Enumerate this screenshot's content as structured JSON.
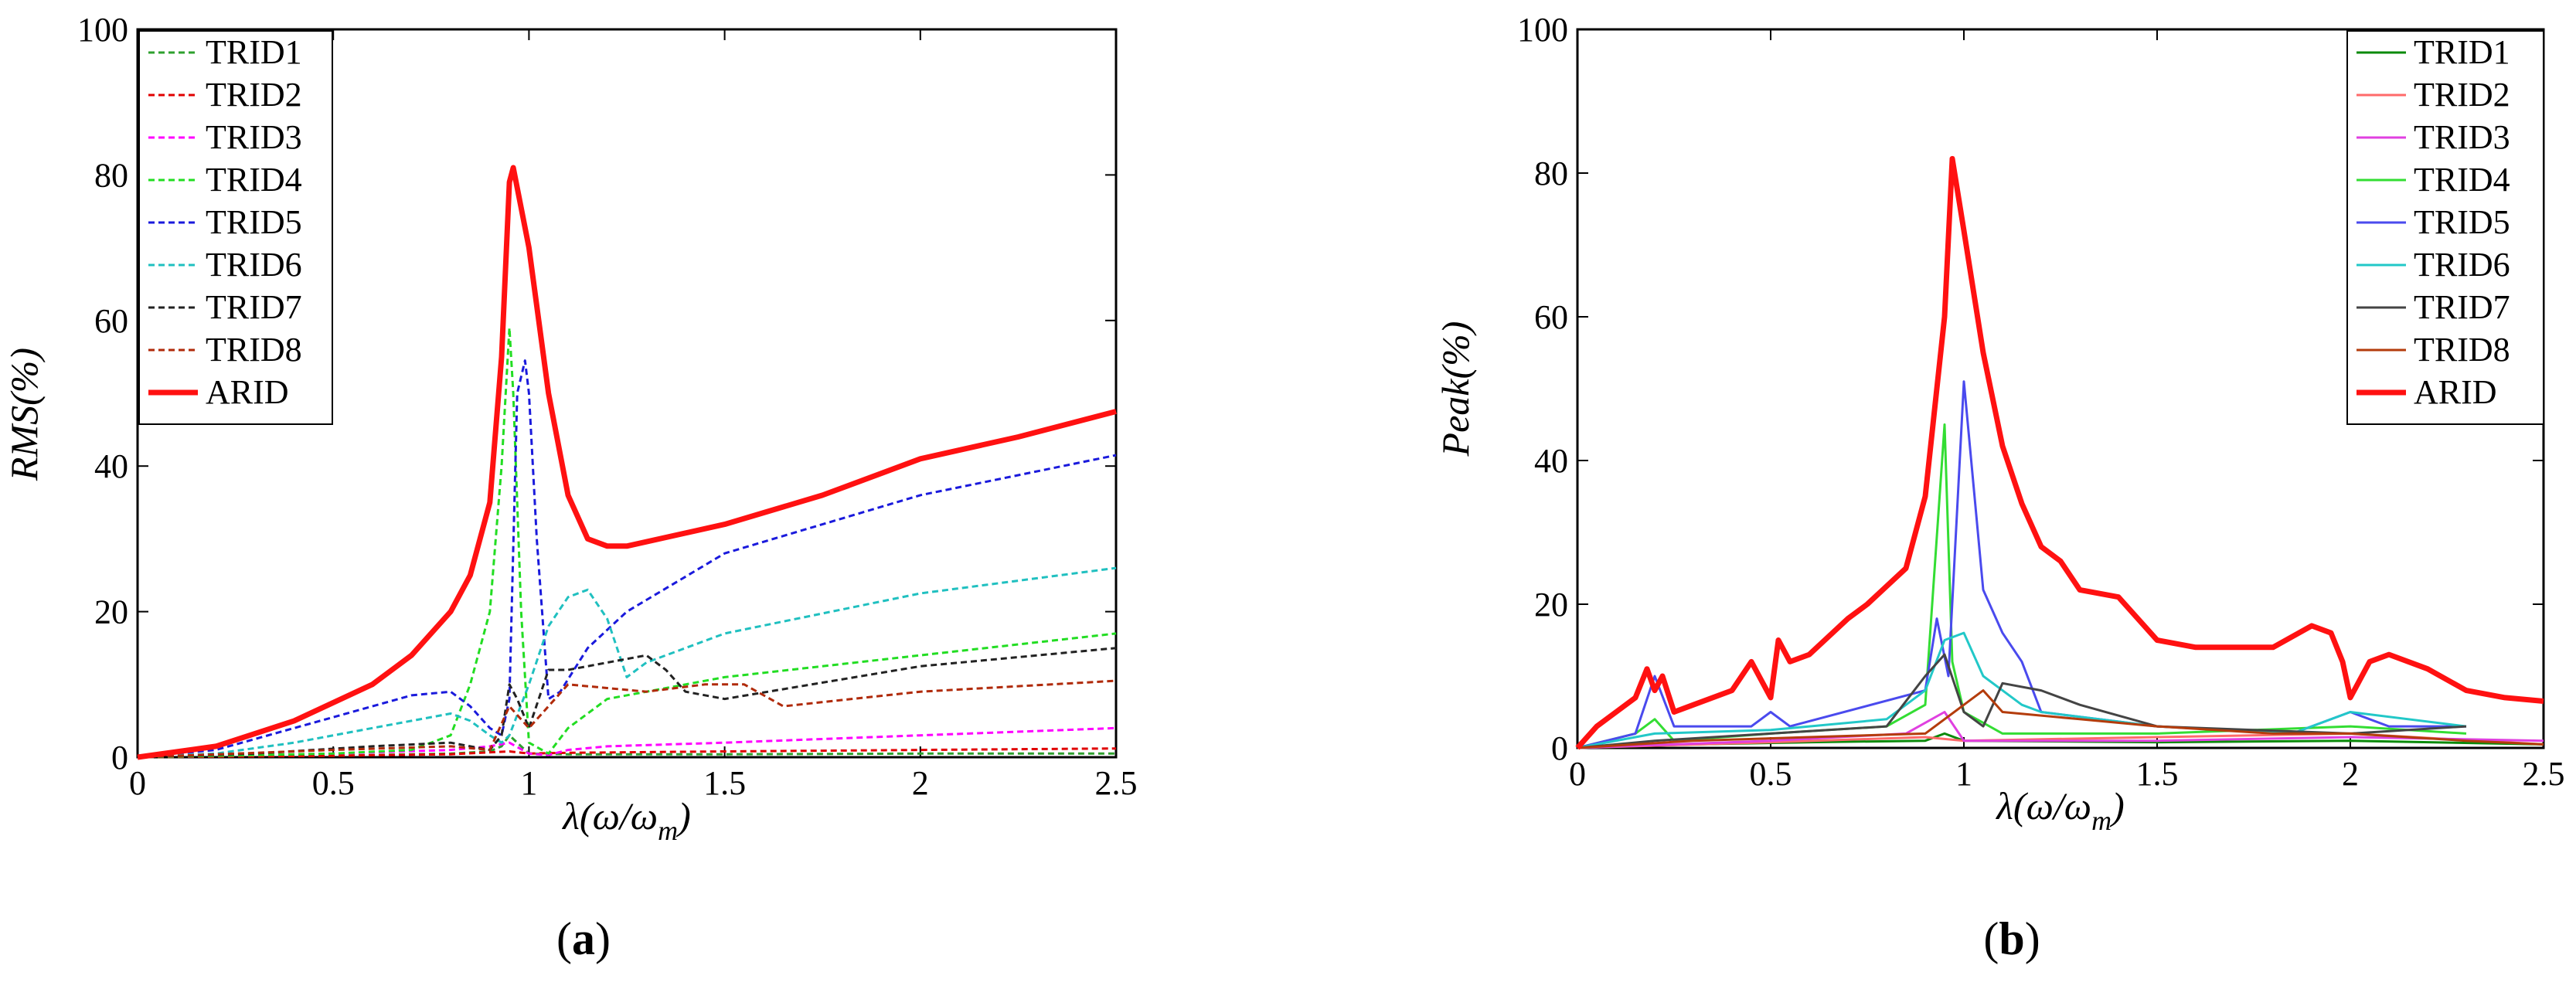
{
  "figure": {
    "panel_a": "a",
    "panel_b": "b"
  },
  "chart_data": [
    {
      "type": "line",
      "title": "",
      "xlabel": "λ(ω/ω",
      "xlabel_sub": "m",
      "xlabel_close": ")",
      "ylabel": "RMS(%)",
      "xlim": [
        0,
        2.5
      ],
      "ylim": [
        0,
        100
      ],
      "xticks": [
        0,
        0.5,
        1,
        1.5,
        2,
        2.5
      ],
      "xtick_labels": [
        "0",
        "0.5",
        "1",
        "1.5",
        "2",
        "2.5"
      ],
      "yticks": [
        0,
        20,
        40,
        60,
        80,
        100
      ],
      "ytick_labels": [
        "0",
        "20",
        "40",
        "60",
        "80",
        "100"
      ],
      "legend_position": "top-left",
      "series": [
        {
          "name": "TRID1",
          "color": "#2ea02e",
          "dash": "dashed",
          "x": [
            0,
            0.5,
            0.8,
            0.9,
            0.93,
            0.95,
            0.97,
            1.0,
            1.1,
            1.5,
            2.0,
            2.5
          ],
          "y": [
            0,
            0.2,
            0.5,
            0.8,
            1.5,
            3,
            2,
            0.5,
            0.4,
            0.4,
            0.5,
            0.5
          ]
        },
        {
          "name": "TRID2",
          "color": "#e00000",
          "dash": "dashed",
          "x": [
            0,
            0.5,
            0.8,
            0.95,
            1.0,
            1.1,
            1.5,
            2.0,
            2.5
          ],
          "y": [
            0,
            0.2,
            0.4,
            0.8,
            0.5,
            0.6,
            0.8,
            1.0,
            1.2
          ]
        },
        {
          "name": "TRID3",
          "color": "#ff00ff",
          "dash": "dashed",
          "x": [
            0,
            0.5,
            0.8,
            0.9,
            0.95,
            1.0,
            1.05,
            1.1,
            1.2,
            1.5,
            2.0,
            2.5
          ],
          "y": [
            0,
            0.5,
            1.0,
            1.5,
            2,
            0.5,
            0.3,
            1.0,
            1.5,
            2,
            3,
            4
          ]
        },
        {
          "name": "TRID4",
          "color": "#22dd22",
          "dash": "dashed",
          "x": [
            0,
            0.3,
            0.5,
            0.7,
            0.8,
            0.85,
            0.9,
            0.93,
            0.95,
            0.96,
            0.98,
            1.0,
            1.05,
            1.1,
            1.2,
            1.5,
            2.0,
            2.5
          ],
          "y": [
            0,
            0.3,
            0.5,
            1.0,
            3,
            10,
            20,
            40,
            59,
            50,
            20,
            2,
            0.5,
            4,
            8,
            11,
            14,
            17
          ]
        },
        {
          "name": "TRID5",
          "color": "#1a1adc",
          "dash": "dashed",
          "x": [
            0,
            0.2,
            0.4,
            0.6,
            0.7,
            0.8,
            0.85,
            0.9,
            0.93,
            0.95,
            0.97,
            0.99,
            1.0,
            1.02,
            1.05,
            1.08,
            1.15,
            1.25,
            1.5,
            2.0,
            2.5
          ],
          "y": [
            0,
            1,
            4,
            7,
            8.5,
            9,
            7,
            4,
            3,
            8,
            50,
            54.5,
            50,
            30,
            8,
            9,
            15,
            20,
            28,
            36,
            41.5
          ]
        },
        {
          "name": "TRID6",
          "color": "#20c0c0",
          "dash": "dashed",
          "x": [
            0,
            0.2,
            0.4,
            0.6,
            0.7,
            0.8,
            0.85,
            0.9,
            0.93,
            0.95,
            1.0,
            1.05,
            1.1,
            1.15,
            1.2,
            1.25,
            1.3,
            1.5,
            2.0,
            2.5
          ],
          "y": [
            0,
            0.5,
            2,
            4,
            5,
            6,
            5,
            3,
            2,
            3,
            10,
            18,
            22,
            23,
            19,
            11,
            13,
            17,
            22.5,
            26
          ]
        },
        {
          "name": "TRID7",
          "color": "#222222",
          "dash": "dashed",
          "x": [
            0,
            0.3,
            0.6,
            0.8,
            0.9,
            0.93,
            0.95,
            0.97,
            1.0,
            1.05,
            1.1,
            1.2,
            1.3,
            1.35,
            1.4,
            1.5,
            2.0,
            2.5
          ],
          "y": [
            0,
            0.5,
            1.5,
            2,
            1,
            3,
            10,
            8,
            4,
            12,
            12,
            13,
            14,
            12,
            9,
            8,
            12.5,
            15
          ]
        },
        {
          "name": "TRID8",
          "color": "#b02a0a",
          "dash": "dashed",
          "x": [
            0,
            0.5,
            0.8,
            0.9,
            0.95,
            1.0,
            1.1,
            1.3,
            1.45,
            1.55,
            1.65,
            2.0,
            2.5
          ],
          "y": [
            0,
            1,
            1.5,
            1,
            7,
            4,
            10,
            9,
            10,
            10,
            7,
            9,
            10.5
          ]
        },
        {
          "name": "ARID",
          "color": "#ff1111",
          "dash": "solid",
          "bold": true,
          "x": [
            0,
            0.2,
            0.4,
            0.6,
            0.7,
            0.8,
            0.85,
            0.9,
            0.93,
            0.95,
            0.96,
            1.0,
            1.05,
            1.1,
            1.15,
            1.2,
            1.25,
            1.5,
            1.75,
            2.0,
            2.25,
            2.5
          ],
          "y": [
            0,
            1.5,
            5,
            10,
            14,
            20,
            25,
            35,
            55,
            79,
            81,
            70,
            50,
            36,
            30,
            29,
            29,
            32,
            36,
            41,
            44,
            47.5
          ]
        }
      ]
    },
    {
      "type": "line",
      "title": "",
      "xlabel": "λ(ω/ω",
      "xlabel_sub": "m",
      "xlabel_close": ")",
      "ylabel": "Peak(%)",
      "xlim": [
        0,
        2.5
      ],
      "ylim": [
        0,
        100
      ],
      "xticks": [
        0,
        0.5,
        1,
        1.5,
        2,
        2.5
      ],
      "xtick_labels": [
        "0",
        "0.5",
        "1",
        "1.5",
        "2",
        "2.5"
      ],
      "yticks": [
        0,
        20,
        40,
        60,
        80,
        100
      ],
      "ytick_labels": [
        "0",
        "20",
        "40",
        "60",
        "80",
        "100"
      ],
      "legend_position": "top-right",
      "series": [
        {
          "name": "TRID1",
          "color": "#0a8a0a",
          "dash": "solid",
          "x": [
            0,
            0.3,
            0.6,
            0.9,
            0.95,
            1.0,
            1.5,
            2.0,
            2.5
          ],
          "y": [
            0,
            0.5,
            0.8,
            1,
            2,
            1,
            0.8,
            1,
            0.5
          ]
        },
        {
          "name": "TRID2",
          "color": "#ff6a6a",
          "dash": "solid",
          "x": [
            0,
            0.5,
            0.9,
            1.0,
            1.5,
            2.0,
            2.5
          ],
          "y": [
            0,
            0.8,
            1.5,
            1,
            1.5,
            2,
            0.5
          ]
        },
        {
          "name": "TRID3",
          "color": "#e040e0",
          "dash": "solid",
          "x": [
            0,
            0.5,
            0.85,
            0.95,
            1.0,
            1.5,
            2.0,
            2.5
          ],
          "y": [
            0,
            1,
            2,
            5,
            1,
            1,
            1.5,
            1
          ]
        },
        {
          "name": "TRID4",
          "color": "#33dd33",
          "dash": "solid",
          "x": [
            0,
            0.15,
            0.2,
            0.25,
            0.5,
            0.8,
            0.9,
            0.95,
            0.97,
            1.0,
            1.1,
            1.5,
            2.0,
            2.3
          ],
          "y": [
            0,
            2,
            4,
            1,
            2,
            3,
            6,
            45,
            12,
            5,
            2,
            2,
            3,
            2
          ]
        },
        {
          "name": "TRID5",
          "color": "#4a4aee",
          "dash": "solid",
          "x": [
            0,
            0.15,
            0.2,
            0.25,
            0.45,
            0.5,
            0.55,
            0.9,
            0.93,
            0.96,
            1.0,
            1.05,
            1.1,
            1.15,
            1.2,
            1.5,
            1.85,
            2.0,
            2.1,
            2.3
          ],
          "y": [
            0,
            2,
            10,
            3,
            3,
            5,
            3,
            8,
            18,
            10,
            51,
            22,
            16,
            12,
            5,
            3,
            2,
            5,
            3,
            3
          ]
        },
        {
          "name": "TRID6",
          "color": "#22c8c8",
          "dash": "solid",
          "x": [
            0,
            0.2,
            0.5,
            0.8,
            0.9,
            0.95,
            1.0,
            1.05,
            1.1,
            1.15,
            1.2,
            1.5,
            1.85,
            2.0,
            2.3
          ],
          "y": [
            0,
            2,
            2.5,
            4,
            8,
            15,
            16,
            10,
            8,
            6,
            5,
            3,
            2,
            5,
            3
          ]
        },
        {
          "name": "TRID7",
          "color": "#444444",
          "dash": "solid",
          "x": [
            0,
            0.2,
            0.5,
            0.8,
            0.9,
            0.95,
            1.0,
            1.05,
            1.1,
            1.2,
            1.3,
            1.5,
            2.0,
            2.3
          ],
          "y": [
            0,
            1,
            2,
            3,
            10,
            13,
            5,
            3,
            9,
            8,
            6,
            3,
            2,
            3
          ]
        },
        {
          "name": "TRID8",
          "color": "#b43c0c",
          "dash": "solid",
          "x": [
            0,
            0.3,
            0.6,
            0.9,
            1.0,
            1.05,
            1.1,
            1.3,
            1.5,
            1.8,
            2.0,
            2.3,
            2.5
          ],
          "y": [
            0,
            1,
            1.5,
            2,
            6,
            8,
            5,
            4,
            3,
            2,
            2,
            1,
            0.5
          ]
        },
        {
          "name": "ARID",
          "color": "#ff1111",
          "dash": "solid",
          "bold": true,
          "x": [
            0,
            0.05,
            0.1,
            0.15,
            0.18,
            0.2,
            0.22,
            0.25,
            0.3,
            0.4,
            0.45,
            0.5,
            0.52,
            0.55,
            0.6,
            0.7,
            0.75,
            0.85,
            0.9,
            0.95,
            0.97,
            1.0,
            1.05,
            1.1,
            1.15,
            1.2,
            1.25,
            1.3,
            1.4,
            1.5,
            1.6,
            1.8,
            1.9,
            1.95,
            1.98,
            2.0,
            2.05,
            2.1,
            2.2,
            2.3,
            2.4,
            2.5
          ],
          "y": [
            0,
            3,
            5,
            7,
            11,
            8,
            10,
            5,
            6,
            8,
            12,
            7,
            15,
            12,
            13,
            18,
            20,
            25,
            35,
            60,
            82,
            72,
            55,
            42,
            34,
            28,
            26,
            22,
            21,
            15,
            14,
            14,
            17,
            16,
            12,
            7,
            12,
            13,
            11,
            8,
            7,
            6.5
          ]
        }
      ]
    }
  ]
}
